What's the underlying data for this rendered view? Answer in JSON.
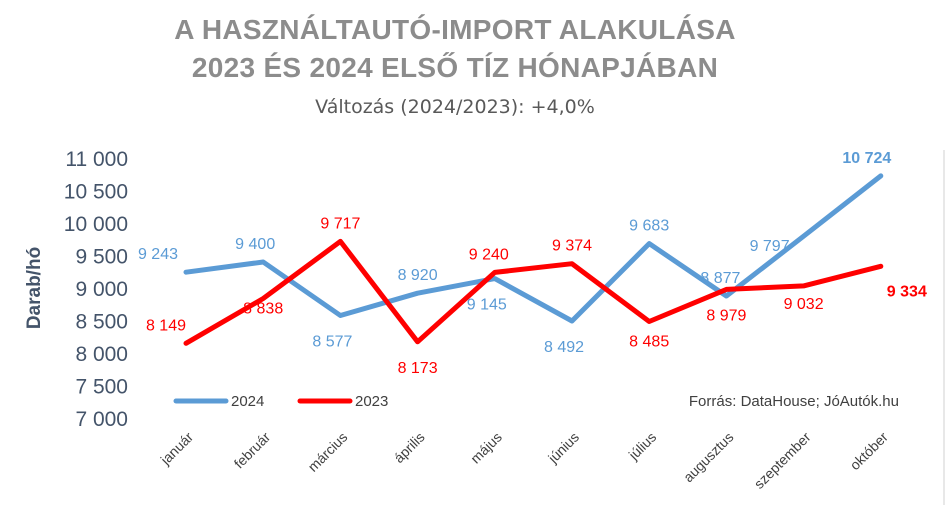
{
  "title_line1": "A HASZNÁLTAUTÓ-IMPORT ALAKULÁSA",
  "title_line2": "2023 ÉS 2024 ELSŐ TÍZ HÓNAPJÁBAN",
  "subtitle": "Változás (2024/2023): +4,0%",
  "source": "Forrás: DataHouse; JóAutók.hu",
  "colors": {
    "series_2024": "#5b9bd5",
    "series_2023": "#ff0000",
    "title": "#8c8c8c",
    "axis_text": "#44546a"
  },
  "chart_data": {
    "type": "line",
    "ylabel": "Darab/hó",
    "ylim": [
      7000,
      11000
    ],
    "yticks": [
      "7 000",
      "7 500",
      "8 000",
      "8 500",
      "9 000",
      "9 500",
      "10 000",
      "10 500",
      "11 000"
    ],
    "categories": [
      "január",
      "február",
      "március",
      "április",
      "május",
      "június",
      "július",
      "augusztus",
      "szeptember",
      "október"
    ],
    "legend_position": "bottom-left",
    "grid": false,
    "series": [
      {
        "name": "2024",
        "values": [
          9243,
          9400,
          8577,
          8920,
          9145,
          8492,
          9683,
          8877,
          9797,
          10724
        ],
        "labels": [
          "9 243",
          "9 400",
          "8 577",
          "8 920",
          "9 145",
          "8 492",
          "9 683",
          "8 877",
          "9 797",
          "10 724"
        ]
      },
      {
        "name": "2023",
        "values": [
          8149,
          8838,
          9717,
          8173,
          9240,
          9374,
          8485,
          8979,
          9032,
          9334
        ],
        "labels": [
          "8 149",
          "8 838",
          "9 717",
          "8 173",
          "9 240",
          "9 374",
          "8 485",
          "8 979",
          "9 032",
          "9 334"
        ]
      }
    ]
  }
}
